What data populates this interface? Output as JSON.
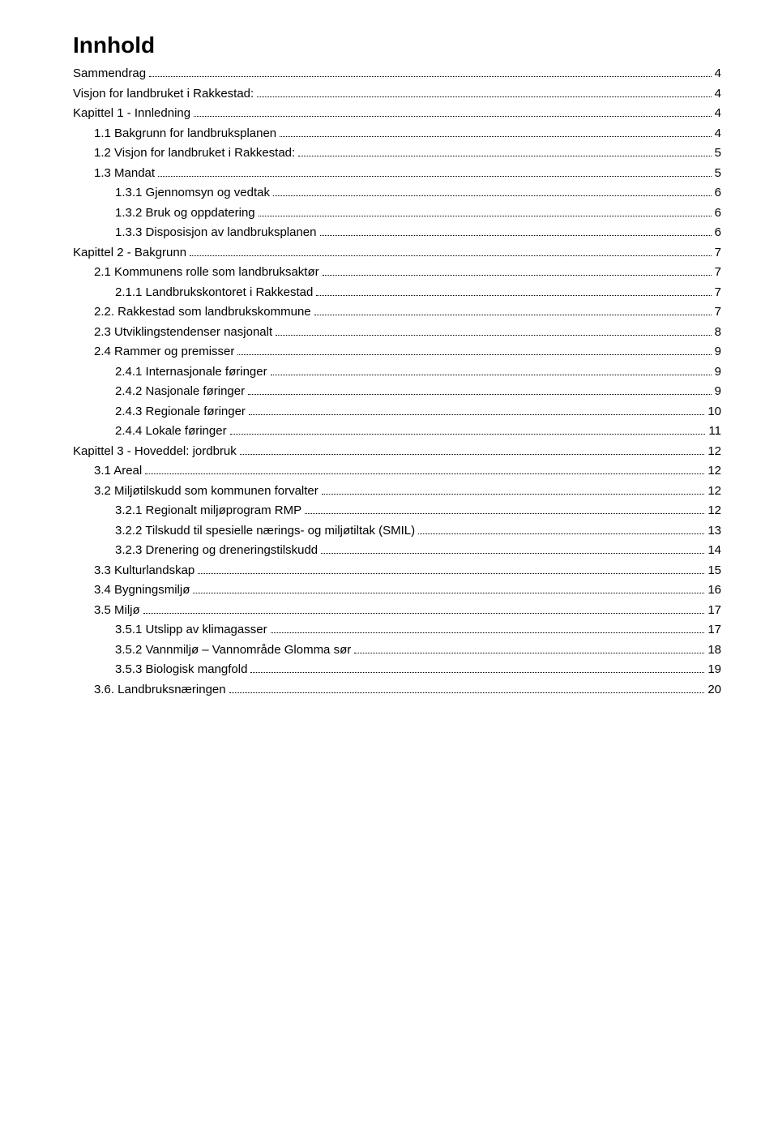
{
  "title": "Innhold",
  "colors": {
    "text": "#000000",
    "bg": "#ffffff"
  },
  "typography": {
    "title_fontsize": 28,
    "body_fontsize": 15,
    "family": "Verdana"
  },
  "entries": [
    {
      "label": "Sammendrag",
      "page": "4",
      "indent": 0
    },
    {
      "label": "Visjon for landbruket i Rakkestad:",
      "page": "4",
      "indent": 0
    },
    {
      "label": "Kapittel 1 - Innledning",
      "page": "4",
      "indent": 0
    },
    {
      "label": "1.1 Bakgrunn for landbruksplanen",
      "page": "4",
      "indent": 1
    },
    {
      "label": "1.2 Visjon for landbruket i Rakkestad:",
      "page": "5",
      "indent": 1
    },
    {
      "label": "1.3 Mandat",
      "page": "5",
      "indent": 1
    },
    {
      "label": "1.3.1 Gjennomsyn og vedtak",
      "page": "6",
      "indent": 2
    },
    {
      "label": "1.3.2 Bruk og oppdatering",
      "page": "6",
      "indent": 2
    },
    {
      "label": "1.3.3 Disposisjon av landbruksplanen",
      "page": "6",
      "indent": 2
    },
    {
      "label": "Kapittel 2 - Bakgrunn",
      "page": "7",
      "indent": 0
    },
    {
      "label": "2.1 Kommunens rolle som landbruksaktør",
      "page": "7",
      "indent": 1
    },
    {
      "label": "2.1.1 Landbrukskontoret i Rakkestad",
      "page": "7",
      "indent": 2
    },
    {
      "label": "2.2. Rakkestad som landbrukskommune",
      "page": "7",
      "indent": 1
    },
    {
      "label": "2.3 Utviklingstendenser nasjonalt",
      "page": "8",
      "indent": 1
    },
    {
      "label": "2.4 Rammer og premisser",
      "page": "9",
      "indent": 1
    },
    {
      "label": "2.4.1 Internasjonale føringer",
      "page": "9",
      "indent": 2
    },
    {
      "label": "2.4.2 Nasjonale føringer",
      "page": "9",
      "indent": 2
    },
    {
      "label": "2.4.3 Regionale føringer",
      "page": "10",
      "indent": 2
    },
    {
      "label": "2.4.4 Lokale føringer",
      "page": "11",
      "indent": 2
    },
    {
      "label": "Kapittel 3 - Hoveddel: jordbruk",
      "page": "12",
      "indent": 0
    },
    {
      "label": "3.1 Areal",
      "page": "12",
      "indent": 1
    },
    {
      "label": "3.2 Miljøtilskudd som kommunen forvalter",
      "page": "12",
      "indent": 1
    },
    {
      "label": "3.2.1 Regionalt miljøprogram RMP",
      "page": "12",
      "indent": 2
    },
    {
      "label": "3.2.2 Tilskudd til spesielle nærings- og miljøtiltak (SMIL)",
      "page": "13",
      "indent": 2
    },
    {
      "label": "3.2.3 Drenering og dreneringstilskudd",
      "page": "14",
      "indent": 2
    },
    {
      "label": "3.3 Kulturlandskap",
      "page": "15",
      "indent": 1
    },
    {
      "label": "3.4 Bygningsmiljø",
      "page": "16",
      "indent": 1
    },
    {
      "label": "3.5 Miljø",
      "page": "17",
      "indent": 1
    },
    {
      "label": "3.5.1 Utslipp av klimagasser",
      "page": "17",
      "indent": 2
    },
    {
      "label": "3.5.2 Vannmiljø – Vannområde Glomma sør",
      "page": "18",
      "indent": 2
    },
    {
      "label": "3.5.3 Biologisk mangfold",
      "page": "19",
      "indent": 2
    },
    {
      "label": "3.6. Landbruksnæringen",
      "page": "20",
      "indent": 1
    }
  ]
}
